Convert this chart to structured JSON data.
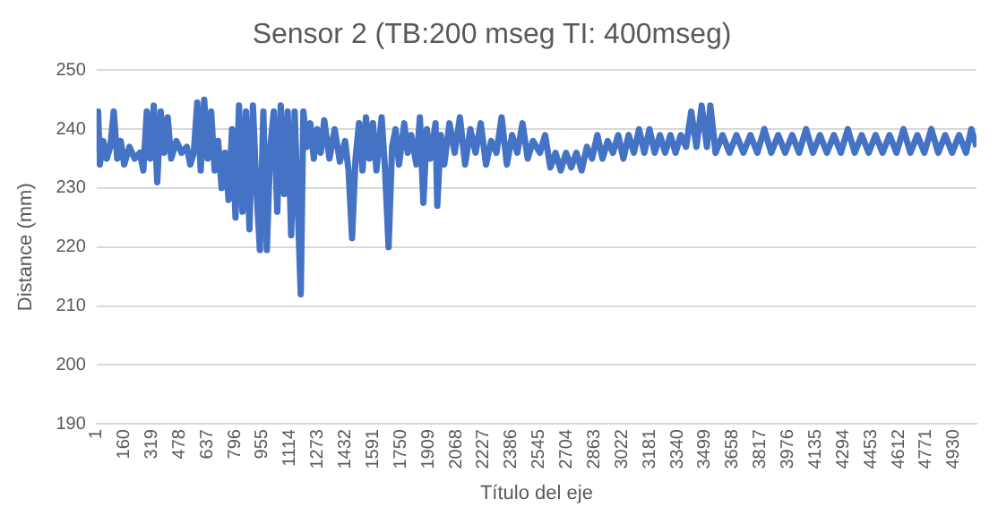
{
  "chart_data": {
    "type": "line",
    "title": "Sensor 2 (TB:200 mseg TI: 400mseg)",
    "xlabel": "Título del eje",
    "ylabel": "Distance (mm)",
    "x": [
      1,
      10,
      20,
      40,
      60,
      80,
      100,
      120,
      140,
      160,
      190,
      220,
      250,
      270,
      290,
      310,
      330,
      350,
      370,
      390,
      410,
      430,
      460,
      490,
      520,
      540,
      560,
      580,
      600,
      620,
      640,
      660,
      680,
      700,
      720,
      740,
      760,
      780,
      800,
      820,
      840,
      860,
      880,
      900,
      920,
      940,
      960,
      980,
      1000,
      1020,
      1040,
      1060,
      1080,
      1100,
      1120,
      1140,
      1160,
      1175,
      1190,
      1210,
      1230,
      1250,
      1270,
      1290,
      1310,
      1340,
      1370,
      1400,
      1430,
      1450,
      1470,
      1490,
      1510,
      1530,
      1550,
      1570,
      1590,
      1610,
      1640,
      1660,
      1680,
      1700,
      1720,
      1740,
      1770,
      1790,
      1810,
      1840,
      1860,
      1880,
      1900,
      1920,
      1950,
      1960,
      1980,
      2000,
      2030,
      2060,
      2090,
      2120,
      2150,
      2180,
      2210,
      2240,
      2270,
      2300,
      2330,
      2360,
      2390,
      2420,
      2450,
      2480,
      2510,
      2550,
      2580,
      2610,
      2640,
      2670,
      2700,
      2730,
      2760,
      2790,
      2820,
      2850,
      2880,
      2910,
      2940,
      2970,
      3000,
      3030,
      3060,
      3090,
      3120,
      3150,
      3180,
      3210,
      3240,
      3270,
      3300,
      3330,
      3360,
      3390,
      3420,
      3450,
      3480,
      3510,
      3530,
      3560,
      3600,
      3640,
      3680,
      3720,
      3760,
      3800,
      3840,
      3880,
      3920,
      3960,
      4000,
      4040,
      4080,
      4120,
      4160,
      4200,
      4240,
      4280,
      4320,
      4360,
      4400,
      4440,
      4480,
      4520,
      4560,
      4600,
      4640,
      4680,
      4720,
      4760,
      4800,
      4840,
      4880,
      4920,
      4960,
      5000,
      5030,
      5060
    ],
    "values": [
      236,
      243,
      234,
      238,
      235,
      237,
      243,
      235,
      238,
      234,
      237,
      235,
      236,
      233,
      243,
      235,
      244,
      231,
      243,
      236,
      242,
      235,
      238,
      236,
      237,
      234,
      236,
      244.5,
      233,
      245,
      235,
      243,
      233,
      238,
      230,
      236,
      228,
      240,
      225,
      244,
      226,
      243,
      223,
      244,
      230,
      219.5,
      243,
      219.5,
      237,
      243,
      226,
      244,
      229,
      243,
      222,
      243,
      225,
      212,
      243,
      237,
      241,
      235,
      240,
      236,
      241.5,
      235,
      240,
      234.5,
      238,
      233,
      221.5,
      235,
      241,
      233,
      242,
      235,
      241,
      233,
      242,
      233,
      220,
      237,
      240,
      234,
      241,
      236,
      239,
      234,
      242,
      227.5,
      240,
      235,
      241,
      227,
      239,
      234,
      241,
      236,
      242,
      234,
      240,
      236,
      241,
      234,
      238,
      236,
      242,
      234,
      239,
      236,
      241,
      235,
      238,
      236,
      239,
      233.5,
      236,
      233,
      236,
      233.5,
      236,
      233,
      237,
      235,
      239,
      235,
      238,
      236,
      239,
      235,
      239,
      236,
      240,
      236,
      240,
      236,
      239,
      236,
      239,
      236,
      239,
      237,
      243,
      237,
      244,
      237,
      244,
      236,
      239,
      236,
      239,
      236,
      239,
      236,
      240,
      236,
      239,
      236,
      239,
      236,
      240,
      236,
      239,
      236,
      239,
      236,
      240,
      236,
      239,
      236,
      239,
      236,
      239,
      236,
      240,
      236,
      239,
      236,
      240,
      236,
      239,
      236,
      239,
      236,
      240,
      237
    ],
    "color": "#4472c4",
    "xlim": [
      1,
      5060
    ],
    "xticks": [
      1,
      160,
      319,
      478,
      637,
      796,
      955,
      1114,
      1273,
      1432,
      1591,
      1750,
      1909,
      2068,
      2227,
      2386,
      2545,
      2704,
      2863,
      3022,
      3181,
      3340,
      3499,
      3658,
      3817,
      3976,
      4135,
      4294,
      4453,
      4612,
      4771,
      4930
    ],
    "ylim": [
      190,
      250
    ],
    "yticks": [
      190,
      200,
      210,
      220,
      230,
      240,
      250
    ],
    "grid": "y",
    "legend": false,
    "marker": "none",
    "line_style": "solid"
  }
}
